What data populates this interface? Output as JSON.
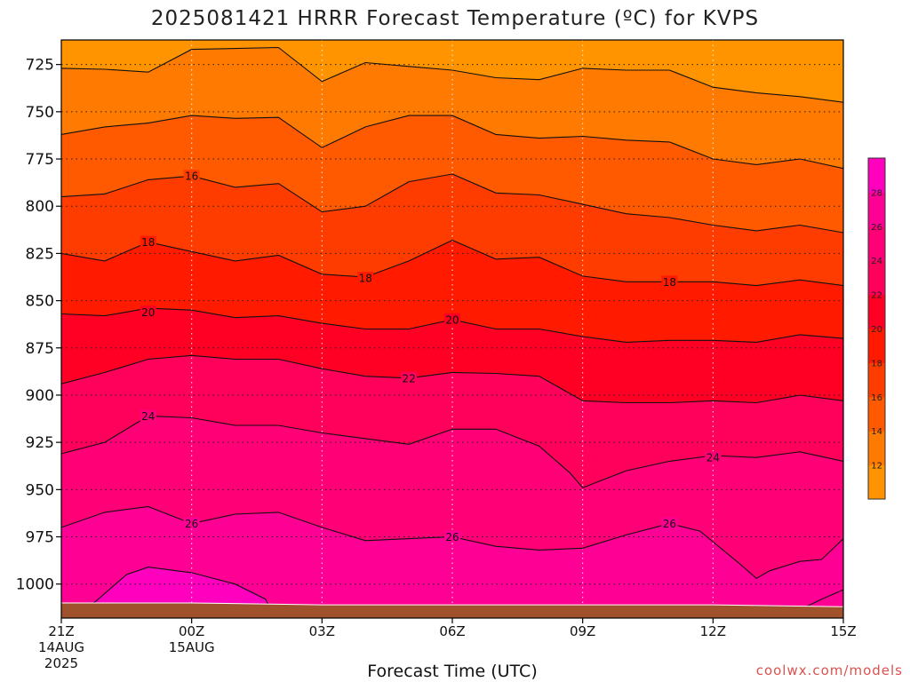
{
  "chart_data": {
    "type": "contour",
    "title": "2025081421 HRRR Forecast Temperature (ºC) for KVPS",
    "xlabel": "Forecast Time (UTC)",
    "ylabel": "",
    "credit": "coolwx.com/models",
    "y_axis": {
      "unit": "hPa",
      "ticks": [
        725,
        750,
        775,
        800,
        825,
        850,
        875,
        900,
        925,
        950,
        975,
        1000
      ],
      "range": [
        712,
        1018
      ],
      "inverted": true
    },
    "x_axis": {
      "range_hours": [
        0,
        18
      ],
      "ticks": [
        {
          "hour": 0,
          "label": "21Z",
          "sub1": "14AUG",
          "sub2": "2025"
        },
        {
          "hour": 3,
          "label": "00Z",
          "sub1": "15AUG",
          "sub2": ""
        },
        {
          "hour": 6,
          "label": "03Z",
          "sub1": "",
          "sub2": ""
        },
        {
          "hour": 9,
          "label": "06Z",
          "sub1": "",
          "sub2": ""
        },
        {
          "hour": 12,
          "label": "09Z",
          "sub1": "",
          "sub2": ""
        },
        {
          "hour": 15,
          "label": "12Z",
          "sub1": "",
          "sub2": ""
        },
        {
          "hour": 18,
          "label": "15Z",
          "sub1": "",
          "sub2": ""
        }
      ]
    },
    "grid": true,
    "colorbar": {
      "placement": "right",
      "labels": [
        "12",
        "14",
        "16",
        "18",
        "20",
        "22",
        "24",
        "26",
        "28"
      ],
      "bands": [
        {
          "min": 10,
          "max": 12,
          "color": "#ff9400"
        },
        {
          "min": 12,
          "max": 14,
          "color": "#ff7a00"
        },
        {
          "min": 14,
          "max": 16,
          "color": "#ff5a00"
        },
        {
          "min": 16,
          "max": 18,
          "color": "#ff3c00"
        },
        {
          "min": 18,
          "max": 20,
          "color": "#ff1a00"
        },
        {
          "min": 20,
          "max": 22,
          "color": "#ff0024"
        },
        {
          "min": 22,
          "max": 24,
          "color": "#ff005a"
        },
        {
          "min": 24,
          "max": 26,
          "color": "#ff0076"
        },
        {
          "min": 26,
          "max": 28,
          "color": "#ff0094"
        },
        {
          "min": 28,
          "max": 30,
          "color": "#ff00bf"
        }
      ]
    },
    "ground_color": "#a0522d",
    "contours": [
      {
        "value": 12,
        "label": "",
        "points": [
          [
            0,
            727
          ],
          [
            1,
            727.5
          ],
          [
            2,
            729
          ],
          [
            3,
            717
          ],
          [
            4,
            716.5
          ],
          [
            5,
            716
          ],
          [
            6,
            734
          ],
          [
            7,
            724
          ],
          [
            8,
            726
          ],
          [
            9,
            728
          ],
          [
            10,
            732
          ],
          [
            11,
            733
          ],
          [
            12,
            727
          ],
          [
            13,
            728
          ],
          [
            14,
            728
          ],
          [
            15,
            737
          ],
          [
            16,
            740
          ],
          [
            17,
            742
          ],
          [
            18,
            745
          ]
        ]
      },
      {
        "value": 14,
        "label": "",
        "points": [
          [
            0,
            762
          ],
          [
            1,
            758
          ],
          [
            2,
            756
          ],
          [
            3,
            752
          ],
          [
            4,
            753.5
          ],
          [
            5,
            753
          ],
          [
            6,
            769
          ],
          [
            7,
            758
          ],
          [
            8,
            752
          ],
          [
            9,
            752
          ],
          [
            10,
            762
          ],
          [
            11,
            764
          ],
          [
            12,
            763
          ],
          [
            13,
            765
          ],
          [
            14,
            766
          ],
          [
            15,
            775
          ],
          [
            16,
            778
          ],
          [
            17,
            775
          ],
          [
            18,
            780
          ]
        ]
      },
      {
        "value": 16,
        "label": "16",
        "label_at": [
          3,
          784
        ],
        "points": [
          [
            0,
            795
          ],
          [
            1,
            793.5
          ],
          [
            2,
            786
          ],
          [
            3,
            784
          ],
          [
            4,
            790
          ],
          [
            5,
            788
          ],
          [
            6,
            803
          ],
          [
            7,
            800
          ],
          [
            8,
            787
          ],
          [
            9,
            783
          ],
          [
            10,
            793
          ],
          [
            11,
            794
          ],
          [
            12,
            799
          ],
          [
            13,
            804
          ],
          [
            14,
            806
          ],
          [
            15,
            810
          ],
          [
            16,
            813
          ],
          [
            17,
            810
          ],
          [
            18,
            814
          ]
        ]
      },
      {
        "value": 18,
        "label": "18",
        "label_at": [
          2,
          819
        ],
        "points": [
          [
            0,
            825
          ],
          [
            1,
            829
          ],
          [
            2,
            819
          ],
          [
            3,
            824
          ],
          [
            4,
            829
          ],
          [
            5,
            826
          ],
          [
            6,
            836
          ],
          [
            7,
            837.5
          ],
          [
            8,
            829
          ],
          [
            9,
            818
          ],
          [
            10,
            828
          ],
          [
            11,
            827
          ],
          [
            12,
            837
          ],
          [
            13,
            840
          ],
          [
            14,
            840
          ],
          [
            15,
            840
          ],
          [
            16,
            842
          ],
          [
            17,
            839
          ],
          [
            18,
            842
          ]
        ]
      },
      {
        "value": 20,
        "label": "20",
        "label_at": [
          2,
          856
        ],
        "points": [
          [
            0,
            857
          ],
          [
            1,
            858
          ],
          [
            2,
            854
          ],
          [
            3,
            855
          ],
          [
            4,
            859
          ],
          [
            5,
            858
          ],
          [
            6,
            862
          ],
          [
            7,
            865
          ],
          [
            8,
            865
          ],
          [
            9,
            860
          ],
          [
            10,
            865
          ],
          [
            11,
            865
          ],
          [
            12,
            869
          ],
          [
            13,
            872
          ],
          [
            14,
            871
          ],
          [
            15,
            871
          ],
          [
            16,
            872
          ],
          [
            17,
            868
          ],
          [
            18,
            870
          ]
        ]
      },
      {
        "value": 22,
        "label": "22",
        "label_at": [
          8,
          891
        ],
        "points": [
          [
            0,
            894
          ],
          [
            1,
            888
          ],
          [
            2,
            881
          ],
          [
            3,
            879
          ],
          [
            4,
            881
          ],
          [
            5,
            881
          ],
          [
            6,
            886
          ],
          [
            7,
            890
          ],
          [
            8,
            891
          ],
          [
            9,
            888
          ],
          [
            10,
            888.5
          ],
          [
            11,
            890
          ],
          [
            12,
            903
          ],
          [
            13,
            904
          ],
          [
            14,
            904
          ],
          [
            15,
            903
          ],
          [
            16,
            904
          ],
          [
            17,
            900
          ],
          [
            18,
            903
          ]
        ]
      },
      {
        "value": 24,
        "label": "24",
        "label_at": [
          2,
          911
        ],
        "points": [
          [
            0,
            931
          ],
          [
            1,
            925
          ],
          [
            2,
            911
          ],
          [
            3,
            912
          ],
          [
            4,
            916
          ],
          [
            5,
            916
          ],
          [
            6,
            920
          ],
          [
            7,
            923
          ],
          [
            8,
            926
          ],
          [
            9,
            918
          ],
          [
            10,
            918
          ],
          [
            11,
            927
          ],
          [
            11.7,
            941
          ],
          [
            12,
            949
          ],
          [
            13,
            940
          ],
          [
            14,
            935
          ],
          [
            15,
            932
          ],
          [
            16,
            933
          ],
          [
            17,
            930
          ],
          [
            18,
            935
          ]
        ]
      },
      {
        "value": 26,
        "label": "26",
        "label_at": [
          3,
          968
        ],
        "points": [
          [
            0,
            970
          ],
          [
            1,
            962
          ],
          [
            2,
            959
          ],
          [
            3,
            968
          ],
          [
            4,
            963
          ],
          [
            5,
            962
          ],
          [
            6,
            970
          ],
          [
            7,
            977
          ],
          [
            8,
            976
          ],
          [
            9,
            975
          ],
          [
            10,
            980
          ],
          [
            11,
            982
          ],
          [
            12,
            981
          ],
          [
            13,
            974
          ],
          [
            14,
            968
          ],
          [
            14.7,
            972
          ],
          [
            15.6,
            989
          ],
          [
            16,
            997
          ],
          [
            16.3,
            993
          ],
          [
            17,
            988
          ],
          [
            17.5,
            987
          ],
          [
            18,
            976
          ]
        ]
      },
      {
        "value": 28,
        "label": "",
        "points": [
          [
            0.7,
            1011
          ],
          [
            1.5,
            995
          ],
          [
            2,
            991
          ],
          [
            3,
            994
          ],
          [
            4,
            1000
          ],
          [
            4.7,
            1008
          ],
          [
            4.8,
            1013
          ]
        ]
      },
      {
        "value": 28,
        "label": "",
        "points": [
          [
            16.6,
            1018
          ],
          [
            17.5,
            1008
          ],
          [
            18,
            1003
          ]
        ]
      }
    ],
    "contour_labels": [
      {
        "value": "16",
        "x_hour": 3,
        "p": 784
      },
      {
        "value": "18",
        "x_hour": 2,
        "p": 819
      },
      {
        "value": "18",
        "x_hour": 7,
        "p": 838
      },
      {
        "value": "18",
        "x_hour": 14,
        "p": 840
      },
      {
        "value": "20",
        "x_hour": 2,
        "p": 856
      },
      {
        "value": "20",
        "x_hour": 9,
        "p": 860
      },
      {
        "value": "22",
        "x_hour": 8,
        "p": 891
      },
      {
        "value": "24",
        "x_hour": 2,
        "p": 911
      },
      {
        "value": "24",
        "x_hour": 15,
        "p": 933
      },
      {
        "value": "26",
        "x_hour": 3,
        "p": 968
      },
      {
        "value": "26",
        "x_hour": 9,
        "p": 975
      },
      {
        "value": "26",
        "x_hour": 14,
        "p": 968
      }
    ],
    "surface_pressure": [
      [
        0,
        1010
      ],
      [
        3,
        1010
      ],
      [
        6,
        1011
      ],
      [
        9,
        1011
      ],
      [
        12,
        1011
      ],
      [
        15,
        1011
      ],
      [
        18,
        1012
      ]
    ]
  }
}
